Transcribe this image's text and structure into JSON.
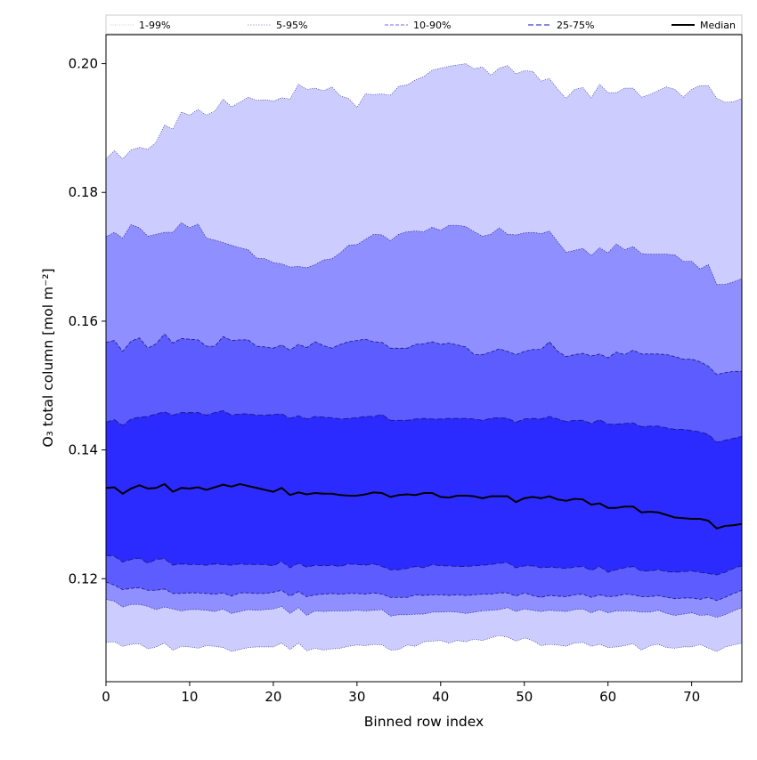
{
  "colors": {
    "band_1_99": "#ccccff",
    "band_5_95": "#8f8fff",
    "band_10_90": "#5c5cff",
    "band_25_75": "#2b2bff",
    "median": "#000000",
    "edge": "#1a1a80"
  },
  "chart_data": {
    "type": "area",
    "title": "",
    "xlabel": "Binned row index",
    "ylabel": "O₃ total column [mol m⁻²]",
    "xlim": [
      0,
      76
    ],
    "ylim": [
      0.104,
      0.2045
    ],
    "xticks": [
      0,
      10,
      20,
      30,
      40,
      50,
      60,
      70
    ],
    "yticks": [
      0.12,
      0.14,
      0.16,
      0.18,
      0.2
    ],
    "grid": false,
    "legend_position": "top, spanning full width",
    "legend": [
      "1-99%",
      "5-95%",
      "10-90%",
      "25-75%",
      "Median"
    ],
    "x": [
      0,
      1,
      2,
      3,
      4,
      5,
      6,
      7,
      8,
      9,
      10,
      11,
      12,
      13,
      14,
      15,
      16,
      17,
      18,
      19,
      20,
      21,
      22,
      23,
      24,
      25,
      26,
      27,
      28,
      29,
      30,
      31,
      32,
      33,
      34,
      35,
      36,
      37,
      38,
      39,
      40,
      41,
      42,
      43,
      44,
      45,
      46,
      47,
      48,
      49,
      50,
      51,
      52,
      53,
      54,
      55,
      56,
      57,
      58,
      59,
      60,
      61,
      62,
      63,
      64,
      65,
      66,
      67,
      68,
      69,
      70,
      71,
      72,
      73,
      74,
      75,
      76
    ],
    "series": [
      {
        "name": "1-99%",
        "lower": [
          0.1101,
          0.1102,
          0.1095,
          0.1098,
          0.1099,
          0.1091,
          0.1094,
          0.11,
          0.1089,
          0.1095,
          0.1094,
          0.1092,
          0.1096,
          0.1095,
          0.1093,
          0.1087,
          0.109,
          0.1093,
          0.1094,
          0.1094,
          0.1094,
          0.11,
          0.109,
          0.11,
          0.1088,
          0.1092,
          0.1089,
          0.1091,
          0.1092,
          0.1095,
          0.1097,
          0.1096,
          0.1098,
          0.1097,
          0.1089,
          0.109,
          0.1097,
          0.1095,
          0.1102,
          0.1103,
          0.1104,
          0.11,
          0.1104,
          0.1102,
          0.1106,
          0.1104,
          0.1108,
          0.1112,
          0.1109,
          0.1103,
          0.1108,
          0.1104,
          0.1096,
          0.1098,
          0.1097,
          0.1095,
          0.11,
          0.1101,
          0.1095,
          0.1098,
          0.1093,
          0.1094,
          0.1096,
          0.1099,
          0.1089,
          0.1096,
          0.1098,
          0.1093,
          0.1092,
          0.1094,
          0.1094,
          0.1098,
          0.1092,
          0.1087,
          0.1094,
          0.1097,
          0.11
        ],
        "upper": [
          0.1852,
          0.1865,
          0.1852,
          0.1866,
          0.187,
          0.1867,
          0.1878,
          0.1905,
          0.1898,
          0.1925,
          0.192,
          0.1929,
          0.192,
          0.1926,
          0.1945,
          0.1933,
          0.194,
          0.1948,
          0.1943,
          0.1944,
          0.1942,
          0.1947,
          0.1945,
          0.1968,
          0.196,
          0.1962,
          0.1958,
          0.1964,
          0.195,
          0.1946,
          0.1932,
          0.1953,
          0.1952,
          0.1953,
          0.1951,
          0.1965,
          0.1967,
          0.1975,
          0.198,
          0.199,
          0.1993,
          0.1996,
          0.1998,
          0.2,
          0.1992,
          0.1995,
          0.1982,
          0.1993,
          0.1997,
          0.1984,
          0.1989,
          0.1988,
          0.1973,
          0.1977,
          0.196,
          0.1946,
          0.196,
          0.1963,
          0.1947,
          0.1968,
          0.1955,
          0.1955,
          0.1962,
          0.1962,
          0.1948,
          0.1952,
          0.1958,
          0.1964,
          0.196,
          0.1948,
          0.196,
          0.1966,
          0.1966,
          0.1946,
          0.194,
          0.1941,
          0.1946
        ]
      },
      {
        "name": "5-95%",
        "lower": [
          0.1168,
          0.1165,
          0.1156,
          0.116,
          0.116,
          0.1157,
          0.1152,
          0.1156,
          0.1153,
          0.115,
          0.1152,
          0.1152,
          0.1151,
          0.1149,
          0.1153,
          0.1146,
          0.1149,
          0.1152,
          0.1151,
          0.1152,
          0.1153,
          0.1157,
          0.1146,
          0.1155,
          0.1143,
          0.115,
          0.1149,
          0.115,
          0.115,
          0.115,
          0.1151,
          0.115,
          0.1151,
          0.1152,
          0.1142,
          0.1144,
          0.1144,
          0.1145,
          0.1145,
          0.1148,
          0.1148,
          0.1149,
          0.1148,
          0.1146,
          0.1148,
          0.115,
          0.1151,
          0.1152,
          0.1155,
          0.1149,
          0.1153,
          0.1151,
          0.1149,
          0.1151,
          0.115,
          0.1149,
          0.1152,
          0.1153,
          0.1147,
          0.1152,
          0.1147,
          0.115,
          0.115,
          0.115,
          0.1148,
          0.1148,
          0.1151,
          0.1146,
          0.1143,
          0.1145,
          0.1147,
          0.1143,
          0.1144,
          0.114,
          0.1144,
          0.115,
          0.1155
        ],
        "upper": [
          0.1731,
          0.1738,
          0.1729,
          0.175,
          0.1745,
          0.1732,
          0.1735,
          0.1738,
          0.1738,
          0.1753,
          0.1745,
          0.1751,
          0.1729,
          0.1726,
          0.1722,
          0.1718,
          0.1714,
          0.1711,
          0.1698,
          0.1697,
          0.1691,
          0.1689,
          0.1684,
          0.1685,
          0.1683,
          0.1688,
          0.1695,
          0.1697,
          0.1706,
          0.1718,
          0.1719,
          0.1727,
          0.1735,
          0.1734,
          0.1725,
          0.1735,
          0.1739,
          0.174,
          0.1739,
          0.1746,
          0.1741,
          0.1749,
          0.1749,
          0.1747,
          0.1739,
          0.1732,
          0.1735,
          0.1745,
          0.1735,
          0.1734,
          0.1737,
          0.1738,
          0.1736,
          0.174,
          0.1723,
          0.1707,
          0.171,
          0.1713,
          0.1702,
          0.1714,
          0.1706,
          0.172,
          0.1711,
          0.1716,
          0.1705,
          0.1704,
          0.1704,
          0.1704,
          0.1703,
          0.1693,
          0.1693,
          0.1681,
          0.1688,
          0.1657,
          0.1657,
          0.1661,
          0.1666
        ]
      },
      {
        "name": "10-90%",
        "lower": [
          0.1195,
          0.119,
          0.1183,
          0.1185,
          0.1186,
          0.1182,
          0.1182,
          0.1184,
          0.1177,
          0.1177,
          0.1178,
          0.1178,
          0.1177,
          0.1176,
          0.1178,
          0.1173,
          0.1178,
          0.1178,
          0.1177,
          0.1177,
          0.1179,
          0.1182,
          0.1173,
          0.118,
          0.1172,
          0.1175,
          0.1176,
          0.1177,
          0.1176,
          0.1177,
          0.1177,
          0.1176,
          0.1178,
          0.1176,
          0.1171,
          0.1171,
          0.1171,
          0.1175,
          0.1174,
          0.1175,
          0.1175,
          0.1174,
          0.1175,
          0.1174,
          0.1175,
          0.1176,
          0.1176,
          0.1178,
          0.1178,
          0.1173,
          0.1178,
          0.1174,
          0.1171,
          0.1174,
          0.1173,
          0.1172,
          0.1175,
          0.1176,
          0.1171,
          0.1175,
          0.1172,
          0.1173,
          0.1176,
          0.1175,
          0.1172,
          0.1172,
          0.1174,
          0.1171,
          0.1169,
          0.117,
          0.117,
          0.1168,
          0.1171,
          0.1166,
          0.1171,
          0.1177,
          0.1182
        ],
        "upper": [
          0.1567,
          0.157,
          0.1553,
          0.1569,
          0.1574,
          0.1558,
          0.1565,
          0.158,
          0.1566,
          0.1573,
          0.1572,
          0.1571,
          0.1561,
          0.1561,
          0.1576,
          0.157,
          0.1571,
          0.1571,
          0.1561,
          0.156,
          0.1558,
          0.1563,
          0.1555,
          0.1564,
          0.1559,
          0.1568,
          0.1562,
          0.1558,
          0.1564,
          0.1568,
          0.157,
          0.1572,
          0.1568,
          0.1567,
          0.1558,
          0.1558,
          0.1558,
          0.1564,
          0.1565,
          0.1568,
          0.1564,
          0.1566,
          0.1563,
          0.156,
          0.1548,
          0.1548,
          0.1552,
          0.1557,
          0.1553,
          0.1548,
          0.1553,
          0.1556,
          0.1556,
          0.1568,
          0.1553,
          0.1545,
          0.1548,
          0.155,
          0.1546,
          0.1549,
          0.1543,
          0.1552,
          0.1548,
          0.1555,
          0.1549,
          0.1549,
          0.1549,
          0.1548,
          0.1545,
          0.1541,
          0.1541,
          0.1537,
          0.153,
          0.1517,
          0.152,
          0.1522,
          0.1522
        ]
      },
      {
        "name": "25-75%",
        "lower": [
          0.1236,
          0.1235,
          0.1226,
          0.123,
          0.1232,
          0.1224,
          0.123,
          0.1231,
          0.1221,
          0.1223,
          0.1222,
          0.1222,
          0.1221,
          0.1223,
          0.1222,
          0.1221,
          0.1223,
          0.1222,
          0.1222,
          0.1222,
          0.122,
          0.1227,
          0.1217,
          0.1224,
          0.1218,
          0.1221,
          0.122,
          0.1221,
          0.1219,
          0.1223,
          0.1222,
          0.1221,
          0.1223,
          0.1219,
          0.1214,
          0.1214,
          0.1216,
          0.1219,
          0.1217,
          0.1222,
          0.122,
          0.122,
          0.1219,
          0.1219,
          0.122,
          0.1221,
          0.1222,
          0.1224,
          0.1225,
          0.1217,
          0.122,
          0.122,
          0.1217,
          0.1218,
          0.1217,
          0.1216,
          0.1218,
          0.1219,
          0.1213,
          0.1219,
          0.121,
          0.1214,
          0.1217,
          0.1219,
          0.1212,
          0.1212,
          0.1214,
          0.1211,
          0.121,
          0.1211,
          0.1212,
          0.121,
          0.1208,
          0.1206,
          0.121,
          0.1216,
          0.122
        ],
        "upper": [
          0.1443,
          0.1447,
          0.1438,
          0.1448,
          0.1451,
          0.1452,
          0.1456,
          0.1459,
          0.1454,
          0.1458,
          0.1458,
          0.1458,
          0.1454,
          0.1458,
          0.1461,
          0.1454,
          0.1456,
          0.1456,
          0.1454,
          0.1454,
          0.1455,
          0.1456,
          0.1449,
          0.1453,
          0.1448,
          0.1452,
          0.1451,
          0.145,
          0.1448,
          0.1449,
          0.145,
          0.1452,
          0.1452,
          0.1455,
          0.1446,
          0.1446,
          0.1446,
          0.1448,
          0.1449,
          0.1448,
          0.1448,
          0.1449,
          0.1449,
          0.1449,
          0.1448,
          0.1446,
          0.1449,
          0.145,
          0.1449,
          0.1443,
          0.1448,
          0.1449,
          0.1448,
          0.1452,
          0.1448,
          0.1444,
          0.1446,
          0.1446,
          0.1441,
          0.1447,
          0.144,
          0.144,
          0.1441,
          0.1442,
          0.1436,
          0.1437,
          0.1437,
          0.1434,
          0.1432,
          0.1432,
          0.143,
          0.1428,
          0.1424,
          0.1412,
          0.1415,
          0.1418,
          0.1421
        ]
      },
      {
        "name": "Median",
        "values": [
          0.1341,
          0.1342,
          0.1332,
          0.134,
          0.1345,
          0.134,
          0.1341,
          0.1347,
          0.1335,
          0.1341,
          0.134,
          0.1342,
          0.1338,
          0.1342,
          0.1346,
          0.1343,
          0.1347,
          0.1344,
          0.1341,
          0.1338,
          0.1335,
          0.1341,
          0.133,
          0.1334,
          0.1331,
          0.1333,
          0.1332,
          0.1332,
          0.133,
          0.1329,
          0.1329,
          0.1331,
          0.1334,
          0.1333,
          0.1327,
          0.133,
          0.1331,
          0.133,
          0.1333,
          0.1333,
          0.1327,
          0.1326,
          0.1329,
          0.1329,
          0.1328,
          0.1325,
          0.1328,
          0.1328,
          0.1328,
          0.1319,
          0.1325,
          0.1327,
          0.1325,
          0.1328,
          0.1323,
          0.1321,
          0.1324,
          0.1323,
          0.1315,
          0.1317,
          0.131,
          0.131,
          0.1312,
          0.1312,
          0.1303,
          0.1304,
          0.1303,
          0.1299,
          0.1295,
          0.1294,
          0.1293,
          0.1293,
          0.129,
          0.1278,
          0.1282,
          0.1283,
          0.1285
        ]
      }
    ]
  }
}
